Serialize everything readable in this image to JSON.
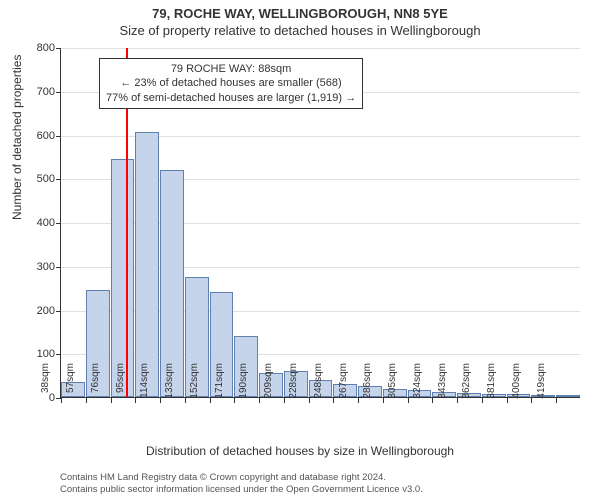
{
  "title_line1": "79, ROCHE WAY, WELLINGBOROUGH, NN8 5YE",
  "title_line2": "Size of property relative to detached houses in Wellingborough",
  "ylabel": "Number of detached properties",
  "xlabel": "Distribution of detached houses by size in Wellingborough",
  "chart": {
    "type": "histogram",
    "background_color": "#ffffff",
    "grid_color": "#e0e0e0",
    "axis_color": "#333333",
    "bar_fill": "#c5d4ea",
    "bar_border": "#6080b0",
    "ylim": [
      0,
      800
    ],
    "ytick_step": 100,
    "yticks": [
      0,
      100,
      200,
      300,
      400,
      500,
      600,
      700,
      800
    ],
    "x_start": 38,
    "x_step": 19,
    "x_suffix": "sqm",
    "xticks": [
      38,
      57,
      76,
      95,
      114,
      133,
      152,
      171,
      190,
      209,
      228,
      248,
      267,
      286,
      305,
      324,
      343,
      362,
      381,
      400,
      419
    ],
    "values": [
      35,
      245,
      545,
      605,
      520,
      275,
      240,
      140,
      55,
      60,
      40,
      30,
      25,
      18,
      15,
      12,
      10,
      8,
      6,
      5,
      4
    ],
    "marker_x": 88,
    "marker_color": "#ff0000",
    "tick_fontsize": 11,
    "label_fontsize": 12,
    "title_fontsize": 13
  },
  "annotation": {
    "line1": "79 ROCHE WAY: 88sqm",
    "line2": "← 23% of detached houses are smaller (568)",
    "line3": "77% of semi-detached houses are larger (1,919) →",
    "border_color": "#333333",
    "background": "#ffffff",
    "fontsize": 11
  },
  "footer": {
    "line1": "Contains HM Land Registry data © Crown copyright and database right 2024.",
    "line2": "Contains public sector information licensed under the Open Government Licence v3.0.",
    "fontsize": 9.5,
    "color": "#555555"
  }
}
